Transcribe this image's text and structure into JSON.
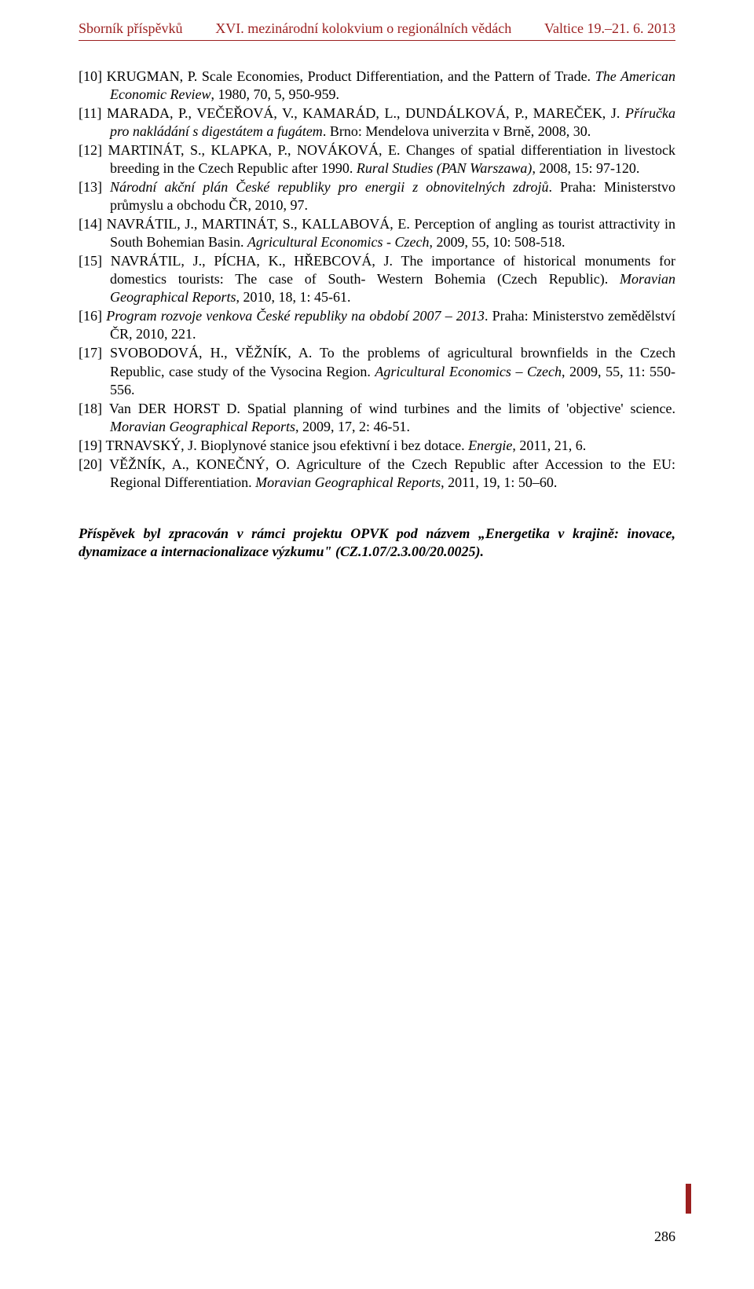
{
  "header": {
    "left": "Sborník příspěvků",
    "center": "XVI. mezinárodní kolokvium o regionálních vědách",
    "right": "Valtice 19.–21. 6. 2013",
    "color": "#9c1f1f"
  },
  "references": [
    {
      "num": "[10]",
      "before": "KRUGMAN, P. Scale Economies, Product Differentiation, and the Pattern of Trade. ",
      "ital": "The American Economic Review",
      "after": ", 1980, 70, 5, 950-959."
    },
    {
      "num": "[11]",
      "before": "MARADA, P., VEČEŘOVÁ, V., KAMARÁD, L., DUNDÁLKOVÁ, P., MAREČEK, J. ",
      "ital": "Příručka pro nakládání s digestátem a fugátem",
      "after": ". Brno: Mendelova univerzita v Brně, 2008, 30."
    },
    {
      "num": "[12]",
      "before": "MARTINÁT, S., KLAPKA, P., NOVÁKOVÁ, E. Changes of spatial differentiation in livestock breeding in the Czech Republic after 1990. ",
      "ital": "Rural Studies (PAN Warszawa)",
      "after": ", 2008, 15: 97-120."
    },
    {
      "num": "[13]",
      "before": "",
      "ital": "Národní akční plán České republiky pro energii z obnovitelných zdrojů",
      "after": ". Praha: Ministerstvo průmyslu a obchodu ČR, 2010, 97."
    },
    {
      "num": "[14]",
      "before": "NAVRÁTIL, J., MARTINÁT, S., KALLABOVÁ, E. Perception of angling as tourist attractivity in South Bohemian Basin. ",
      "ital": "Agricultural Economics - Czech",
      "after": ", 2009, 55, 10: 508-518."
    },
    {
      "num": "[15]",
      "before": "NAVRÁTIL, J., PÍCHA, K., HŘEBCOVÁ, J. The importance of historical monuments for domestics tourists: The case of South- Western Bohemia (Czech Republic). ",
      "ital": "Moravian Geographical Reports",
      "after": ", 2010, 18, 1: 45-61."
    },
    {
      "num": "[16]",
      "before": "",
      "ital": "Program rozvoje venkova České republiky na období 2007 – 2013",
      "after": ". Praha: Ministerstvo zemědělství ČR, 2010, 221."
    },
    {
      "num": "[17]",
      "before": "SVOBODOVÁ, H., VĚŽNÍK, A. To the problems of agricultural brownfields in the Czech Republic, case study of the Vysocina Region. ",
      "ital": "Agricultural Economics – Czech",
      "after": ", 2009, 55, 11: 550-556."
    },
    {
      "num": "[18]",
      "before": "Van DER HORST D. Spatial planning of wind turbines and the limits of 'objective' science. ",
      "ital": "Moravian Geographical Reports",
      "after": ", 2009, 17, 2: 46-51."
    },
    {
      "num": "[19]",
      "before": "TRNAVSKÝ, J. Bioplynové stanice jsou efektivní i bez dotace. ",
      "ital": "Energie",
      "after": ", 2011, 21, 6."
    },
    {
      "num": "[20]",
      "before": "VĚŽNÍK, A., KONEČNÝ, O. Agriculture of the Czech Republic after Accession to the EU: Regional Differentiation. ",
      "ital": "Moravian Geographical Reports",
      "after": ", 2011, 19, 1: 50–60."
    }
  ],
  "ack": "Příspěvek byl zpracován v rámci projektu OPVK pod názvem „Energetika v krajině: inovace, dynamizace a internacionalizace výzkumu\" (CZ.1.07/2.3.00/20.0025).",
  "pageNumber": "286",
  "colors": {
    "text": "#000000",
    "accent": "#9c1f1f",
    "background": "#ffffff"
  },
  "typography": {
    "body_fontsize": 18,
    "font_family": "Times New Roman"
  }
}
